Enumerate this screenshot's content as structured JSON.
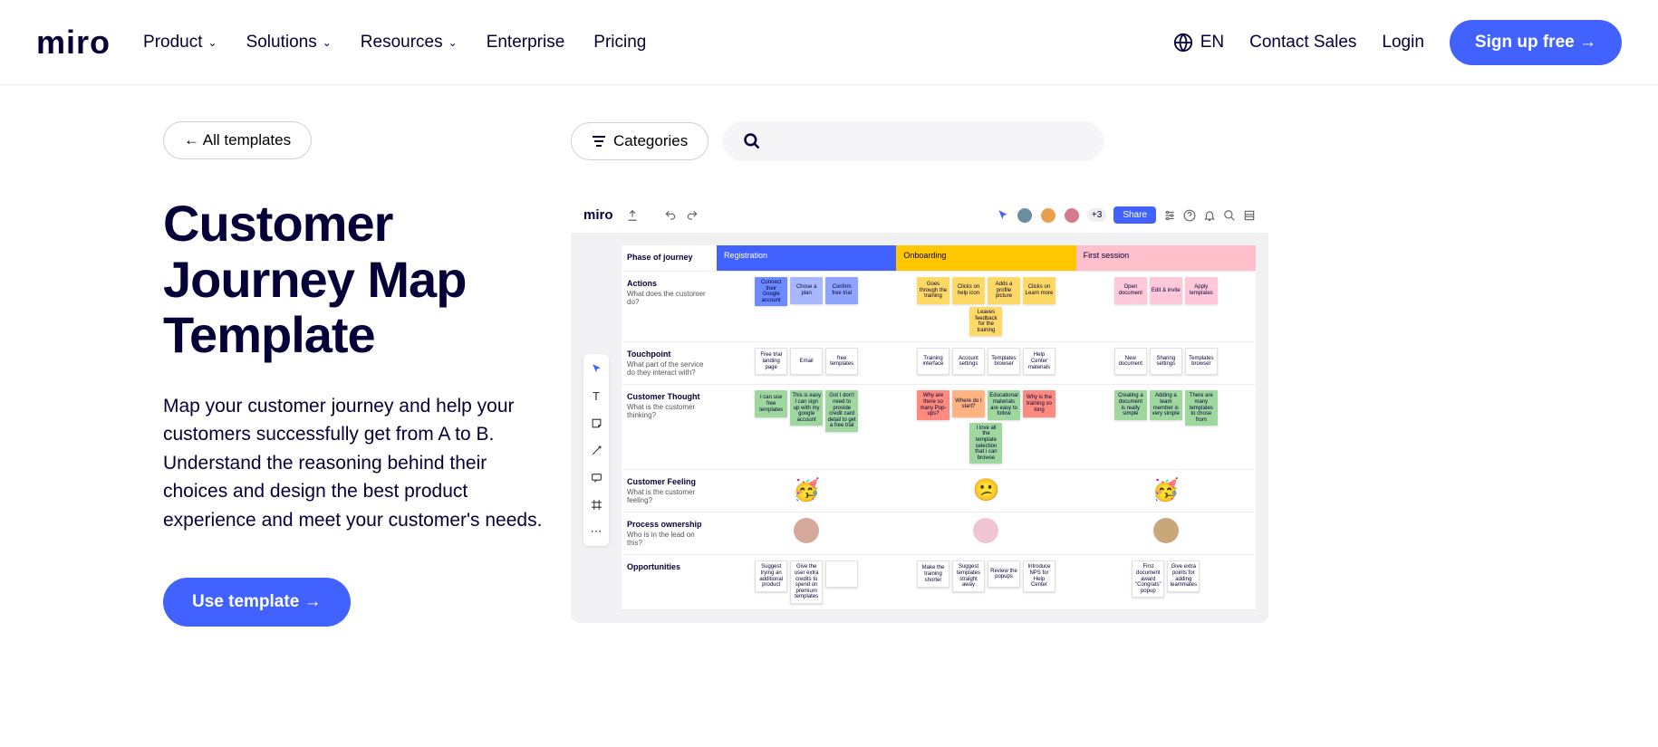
{
  "header": {
    "logo": "miro",
    "nav": [
      "Product",
      "Solutions",
      "Resources",
      "Enterprise",
      "Pricing"
    ],
    "nav_dropdown": [
      true,
      true,
      true,
      false,
      false
    ],
    "lang": "EN",
    "contact": "Contact Sales",
    "login": "Login",
    "signup": "Sign up free →"
  },
  "page": {
    "back_label": "← All templates",
    "categories_label": "Categories",
    "title": "Customer Journey Map Template",
    "description": "Map your customer journey and help your customers successfully get from A to B. Understand the reasoning behind their choices and design the best product experience and meet your customer's needs.",
    "cta": "Use template →"
  },
  "board": {
    "logo": "miro",
    "avatar_colors": [
      "#6b8e9e",
      "#e8a04c",
      "#d67b8e"
    ],
    "avatar_extra": "+3",
    "share": "Share",
    "phases": [
      {
        "label": "Phase of journey",
        "bg": "#ffffff"
      },
      {
        "label": "Registration",
        "bg": "#4262ff",
        "color": "#fff"
      },
      {
        "label": "Onboarding",
        "bg": "#ffc700"
      },
      {
        "label": "First session",
        "bg": "#ffc0cb"
      }
    ],
    "rows": [
      {
        "title": "Actions",
        "sub": "What does the customer do?",
        "cells": [
          [
            {
              "t": "Connect their Google account",
              "c": "#6b8aff"
            },
            {
              "t": "Chose a plan",
              "c": "#a8b8ff"
            },
            {
              "t": "Confirm free trial",
              "c": "#8fa4ff"
            }
          ],
          [
            {
              "t": "Goes through the training",
              "c": "#ffd966"
            },
            {
              "t": "Clicks on help icon",
              "c": "#ffd966"
            },
            {
              "t": "Adds a profile picture",
              "c": "#ffd966"
            },
            {
              "t": "Clicks on Learn more",
              "c": "#ffd966"
            },
            {
              "t": "Leaves feedback for the training",
              "c": "#ffd966"
            }
          ],
          [
            {
              "t": "Open document",
              "c": "#ffc9d9"
            },
            {
              "t": "Edit & invite",
              "c": "#ffc9d9"
            },
            {
              "t": "Apply templates",
              "c": "#ffc9d9"
            }
          ]
        ]
      },
      {
        "title": "Touchpoint",
        "sub": "What part of the service do they interact with?",
        "cells": [
          [
            {
              "t": "Free trial landing page",
              "c": "#ffffff"
            },
            {
              "t": "Email",
              "c": "#ffffff"
            },
            {
              "t": "free templates",
              "c": "#ffffff"
            }
          ],
          [
            {
              "t": "Training interface",
              "c": "#ffffff"
            },
            {
              "t": "Account settings",
              "c": "#ffffff"
            },
            {
              "t": "Templates browser",
              "c": "#ffffff"
            },
            {
              "t": "Help Center materials",
              "c": "#ffffff"
            }
          ],
          [
            {
              "t": "New document",
              "c": "#ffffff"
            },
            {
              "t": "Sharing settings",
              "c": "#ffffff"
            },
            {
              "t": "Templates browser",
              "c": "#ffffff"
            }
          ]
        ]
      },
      {
        "title": "Customer Thought",
        "sub": "What is the customer thinking?",
        "cells": [
          [
            {
              "t": "I can use free templates",
              "c": "#9fd89f"
            },
            {
              "t": "This is easy I can sign up with my google account",
              "c": "#9fd89f"
            },
            {
              "t": "Got I don't need to provide credit card detail to get a free trial",
              "c": "#9fd89f"
            }
          ],
          [
            {
              "t": "Why are there so many Pop-ups?",
              "c": "#ff8a80"
            },
            {
              "t": "Where do I start?",
              "c": "#ffb380"
            },
            {
              "t": "Educational materials are easy to follow",
              "c": "#9fd89f"
            },
            {
              "t": "Why is the training so long",
              "c": "#ff8a80"
            },
            {
              "t": "I love all the template selection that i can browse",
              "c": "#9fd89f"
            }
          ],
          [
            {
              "t": "Creating a document is really simple",
              "c": "#9fd89f"
            },
            {
              "t": "Adding a team member is very simple",
              "c": "#9fd89f"
            },
            {
              "t": "There are many templates to chose from",
              "c": "#9fd89f"
            }
          ]
        ]
      },
      {
        "title": "Customer Feeling",
        "sub": "What is the customer feeling?",
        "emojis": [
          "🥳",
          "😕",
          "🥳"
        ]
      },
      {
        "title": "Process ownership",
        "sub": "Who is in the lead on this?",
        "avatars": [
          "#d4a89a",
          "#f0c4d0",
          "#c8a878"
        ]
      },
      {
        "title": "Opportunities",
        "sub": "",
        "cells": [
          [
            {
              "t": "Suggest trying an additional product",
              "c": "#ffffff"
            },
            {
              "t": "Give the user extra credits to spend on premium templates",
              "c": "#ffffff"
            },
            {
              "t": "",
              "c": "#ffffff"
            }
          ],
          [
            {
              "t": "Make the training shorter",
              "c": "#ffffff"
            },
            {
              "t": "Suggest templates straight away",
              "c": "#ffffff"
            },
            {
              "t": "Review the popups",
              "c": "#ffffff"
            },
            {
              "t": "Introduce NPS for Help Center",
              "c": "#ffffff"
            }
          ],
          [
            {
              "t": "First document award \"Congrats\" popup",
              "c": "#ffffff"
            },
            {
              "t": "Give extra points for adding teammates",
              "c": "#ffffff"
            }
          ]
        ]
      }
    ]
  },
  "colors": {
    "primary": "#4262ff",
    "text": "#050038"
  }
}
